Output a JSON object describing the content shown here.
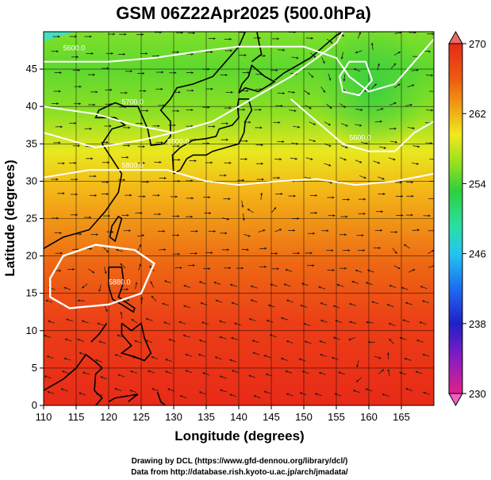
{
  "title": "GSM 06Z22Apr2025 (500.0hPa)",
  "x_axis": {
    "label": "Longitude (degrees)",
    "ticks": [
      "110",
      "115",
      "120",
      "125",
      "130",
      "135",
      "140",
      "145",
      "150",
      "155",
      "160",
      "165"
    ],
    "range": [
      110,
      170
    ]
  },
  "y_axis": {
    "label": "Latitude  (degrees)",
    "ticks": [
      "0",
      "5",
      "10",
      "15",
      "20",
      "25",
      "30",
      "35",
      "40",
      "45"
    ],
    "range": [
      0,
      50
    ]
  },
  "colorbar": {
    "ticks": [
      "270",
      "262",
      "254",
      "246",
      "238",
      "230"
    ],
    "range": [
      230,
      270
    ],
    "colors": [
      "#e0208a",
      "#8a1cc0",
      "#2020c8",
      "#1e6cf0",
      "#22c6f0",
      "#29e0a0",
      "#2ed03c",
      "#9ae01e",
      "#f0e81e",
      "#f0a014",
      "#ee5a10",
      "#e82a18"
    ]
  },
  "contours": {
    "labels": [
      "5600.0",
      "5700.0",
      "5800.0",
      "5600.0",
      "5800.0",
      "5880.0"
    ]
  },
  "credits": {
    "line1": "Drawing by DCL (https://www.gfd-dennou.org/library/dcl/)",
    "line2": "Data from http://database.rish.kyoto-u.ac.jp/arch/jmadata/"
  },
  "chart_data": {
    "type": "heatmap",
    "title": "GSM 06Z22Apr2025 (500.0hPa)",
    "xlabel": "Longitude (degrees)",
    "ylabel": "Latitude  (degrees)",
    "xlim": [
      110,
      170
    ],
    "ylim": [
      0,
      50
    ],
    "field": "temperature (K) with streamlines and geopotential height contours",
    "colorbar_range": [
      230,
      270
    ],
    "colorbar_ticks": [
      230,
      238,
      246,
      254,
      262,
      270
    ],
    "approx_temperature_by_latitude": [
      {
        "lat": 48,
        "temp": 250
      },
      {
        "lat": 45,
        "temp": 254
      },
      {
        "lat": 40,
        "temp": 257
      },
      {
        "lat": 35,
        "temp": 260
      },
      {
        "lat": 30,
        "temp": 263
      },
      {
        "lat": 25,
        "temp": 265
      },
      {
        "lat": 20,
        "temp": 267
      },
      {
        "lat": 15,
        "temp": 268
      },
      {
        "lat": 10,
        "temp": 269
      },
      {
        "lat": 5,
        "temp": 268
      },
      {
        "lat": 0,
        "temp": 267
      }
    ],
    "contour_levels": [
      5600,
      5700,
      5800,
      5880
    ]
  }
}
